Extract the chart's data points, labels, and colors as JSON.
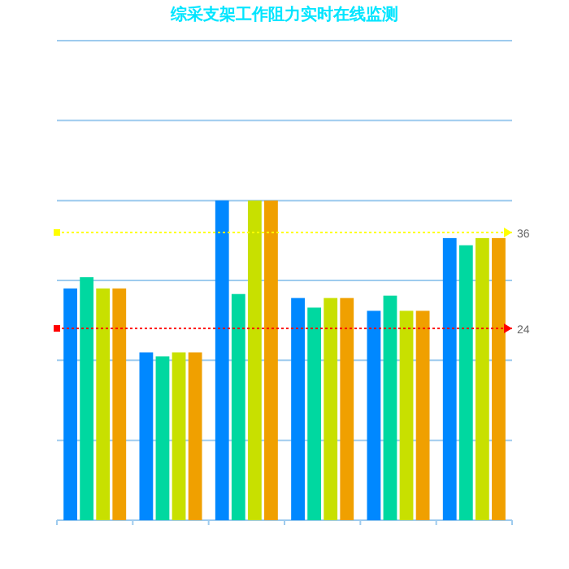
{
  "chart_data": {
    "type": "bar",
    "title": "综采支架工作阻力实时在线监测",
    "categories": [
      null,
      null,
      null,
      null,
      null,
      null
    ],
    "series": [
      {
        "color": "#0088ff",
        "values": [
          29,
          21,
          40,
          27.8,
          26.2,
          35.3
        ]
      },
      {
        "color": "#00d8a0",
        "values": [
          30.4,
          20.5,
          28.3,
          26.6,
          28.1,
          34.4
        ]
      },
      {
        "color": "#c8e000",
        "values": [
          29,
          21,
          40,
          27.8,
          26.2,
          35.3
        ]
      },
      {
        "color": "#f0a000",
        "values": [
          29,
          21,
          40,
          27.8,
          26.2,
          35.3
        ]
      }
    ],
    "ylim": [
      0,
      60
    ],
    "yticks": [
      {
        "value": 0,
        "label": null
      },
      {
        "value": 10,
        "label": null
      },
      {
        "value": 20,
        "label": null
      },
      {
        "value": 30,
        "label": null
      },
      {
        "value": 40,
        "label": null
      },
      {
        "value": 50,
        "label": null
      },
      {
        "value": 60,
        "label": null
      }
    ],
    "ref_lines": [
      {
        "axis": "y",
        "value": 36,
        "label": "36",
        "color": "#ffff00",
        "line_style": "dotted"
      },
      {
        "axis": "y",
        "value": 24,
        "label": "24",
        "color": "#ff0000",
        "line_style": "dotted"
      }
    ],
    "grid": "y"
  }
}
